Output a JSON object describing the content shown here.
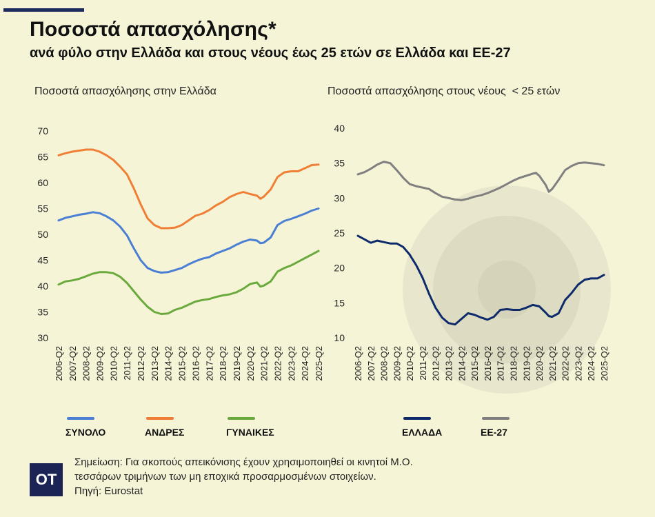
{
  "header": {
    "title": "Ποσοστά απασχόλησης*",
    "subtitle": "ανά φύλο στην Ελλάδα και στους νέους έως 25 ετών σε Ελλάδα και ΕΕ-27"
  },
  "chart_data": [
    {
      "type": "line",
      "title": "Ποσοστά απασχόλησης στην Ελλάδα",
      "ylim": [
        30,
        70
      ],
      "yticks": [
        70,
        65,
        60,
        55,
        50,
        45,
        40,
        35,
        30
      ],
      "xticks": [
        "2006-Q2",
        "2007-Q2",
        "2008-Q2",
        "2009-Q2",
        "2010-Q2",
        "2011-Q2",
        "2012-Q2",
        "2013-Q2",
        "2014-Q2",
        "2015-Q2",
        "2016-Q2",
        "2017-Q2",
        "2018-Q2",
        "2019-Q2",
        "2020-Q2",
        "2021-Q2",
        "2022-Q2",
        "2023-Q2",
        "2024-Q2",
        "2025-Q2"
      ],
      "grid": false,
      "legend_placement": "bottom",
      "x": [
        "2006-Q2",
        "2006-Q4",
        "2007-Q2",
        "2007-Q4",
        "2008-Q2",
        "2008-Q4",
        "2009-Q2",
        "2009-Q4",
        "2010-Q2",
        "2010-Q4",
        "2011-Q2",
        "2011-Q4",
        "2012-Q2",
        "2012-Q4",
        "2013-Q2",
        "2013-Q4",
        "2014-Q2",
        "2014-Q4",
        "2015-Q2",
        "2015-Q4",
        "2016-Q2",
        "2016-Q4",
        "2017-Q2",
        "2017-Q4",
        "2018-Q2",
        "2018-Q4",
        "2019-Q2",
        "2019-Q4",
        "2020-Q2",
        "2020-Q4",
        "2021-Q1",
        "2021-Q2",
        "2021-Q4",
        "2022-Q2",
        "2022-Q4",
        "2023-Q2",
        "2023-Q4",
        "2024-Q2",
        "2024-Q4",
        "2025-Q2"
      ],
      "series": [
        {
          "name": "ΣΥΝΟΛΟ",
          "color": "#4a7fd4",
          "values": [
            52.7,
            53.2,
            53.5,
            53.8,
            54.0,
            54.3,
            54.1,
            53.5,
            52.7,
            51.5,
            49.8,
            47.3,
            45.0,
            43.5,
            42.9,
            42.6,
            42.7,
            43.1,
            43.5,
            44.2,
            44.8,
            45.3,
            45.6,
            46.3,
            46.8,
            47.3,
            48.0,
            48.6,
            49.0,
            48.8,
            48.3,
            48.4,
            49.4,
            51.8,
            52.6,
            53.0,
            53.5,
            54.0,
            54.6,
            55.0
          ]
        },
        {
          "name": "ΑΝΔΡΕΣ",
          "color": "#f07f35",
          "values": [
            65.3,
            65.7,
            66.0,
            66.2,
            66.4,
            66.4,
            66.0,
            65.3,
            64.4,
            63.1,
            61.6,
            58.9,
            55.8,
            53.1,
            51.8,
            51.2,
            51.2,
            51.3,
            51.8,
            52.7,
            53.6,
            54.0,
            54.7,
            55.6,
            56.3,
            57.2,
            57.8,
            58.2,
            57.8,
            57.5,
            56.9,
            57.3,
            58.7,
            61.1,
            62.0,
            62.2,
            62.2,
            62.8,
            63.4,
            63.5
          ]
        },
        {
          "name": "ΓΥΝΑΙΚΕΣ",
          "color": "#6aaa3d",
          "values": [
            40.3,
            40.9,
            41.1,
            41.4,
            41.9,
            42.4,
            42.7,
            42.7,
            42.5,
            41.8,
            40.6,
            39.0,
            37.4,
            36.0,
            35.0,
            34.6,
            34.7,
            35.4,
            35.8,
            36.4,
            37.0,
            37.3,
            37.5,
            37.9,
            38.2,
            38.4,
            38.8,
            39.5,
            40.4,
            40.7,
            39.9,
            40.1,
            40.9,
            42.8,
            43.5,
            44.0,
            44.7,
            45.4,
            46.1,
            46.8
          ]
        }
      ]
    },
    {
      "type": "line",
      "title": "Ποσοστά απασχόλησης στους νέους  < 25 ετών",
      "ylim": [
        10,
        40
      ],
      "yticks": [
        40,
        35,
        30,
        25,
        20,
        15,
        10
      ],
      "xticks": [
        "2006-Q2",
        "2007-Q2",
        "2008-Q2",
        "2009-Q2",
        "2010-Q2",
        "2011-Q2",
        "2012-Q2",
        "2013-Q2",
        "2014-Q2",
        "2015-Q2",
        "2016-Q2",
        "2017-Q2",
        "2018-Q2",
        "2019-Q2",
        "2020-Q2",
        "2021-Q2",
        "2022-Q2",
        "2023-Q2",
        "2024-Q2",
        "2025-Q2"
      ],
      "grid": false,
      "legend_placement": "bottom",
      "x": [
        "2006-Q2",
        "2006-Q4",
        "2007-Q2",
        "2007-Q4",
        "2008-Q2",
        "2008-Q4",
        "2009-Q2",
        "2009-Q4",
        "2010-Q2",
        "2010-Q4",
        "2011-Q2",
        "2011-Q4",
        "2012-Q2",
        "2012-Q4",
        "2013-Q2",
        "2013-Q4",
        "2014-Q2",
        "2014-Q4",
        "2015-Q2",
        "2015-Q4",
        "2016-Q2",
        "2016-Q4",
        "2017-Q2",
        "2017-Q4",
        "2018-Q2",
        "2018-Q4",
        "2019-Q2",
        "2019-Q4",
        "2020-Q1",
        "2020-Q2",
        "2020-Q4",
        "2021-Q1",
        "2021-Q2",
        "2021-Q4",
        "2022-Q2",
        "2022-Q4",
        "2023-Q2",
        "2023-Q4",
        "2024-Q2",
        "2024-Q4",
        "2025-Q2"
      ],
      "series": [
        {
          "name": "ΕΛΛΑΔΑ",
          "color": "#0d2a6b",
          "values": [
            24.6,
            24.1,
            23.6,
            23.9,
            23.7,
            23.5,
            23.5,
            23.0,
            21.9,
            20.4,
            18.6,
            16.3,
            14.3,
            12.9,
            12.1,
            11.9,
            12.7,
            13.5,
            13.3,
            12.9,
            12.6,
            13.0,
            14.0,
            14.1,
            14.0,
            14.0,
            14.3,
            14.7,
            14.6,
            14.5,
            13.6,
            13.1,
            13.0,
            13.5,
            15.4,
            16.4,
            17.6,
            18.3,
            18.5,
            18.5,
            19.0
          ]
        },
        {
          "name": "ΕΕ-27",
          "color": "#7f7f7f",
          "values": [
            33.4,
            33.7,
            34.2,
            34.8,
            35.2,
            35.0,
            34.0,
            32.9,
            32.0,
            31.7,
            31.5,
            31.3,
            30.7,
            30.2,
            30.0,
            29.8,
            29.7,
            29.9,
            30.2,
            30.4,
            30.7,
            31.1,
            31.5,
            32.0,
            32.5,
            32.9,
            33.2,
            33.5,
            33.6,
            33.2,
            31.9,
            30.9,
            31.3,
            32.6,
            34.0,
            34.6,
            35.0,
            35.1,
            35.0,
            34.9,
            34.7
          ]
        }
      ]
    }
  ],
  "footer": {
    "logo_text": "ΟΤ",
    "note_line1": "Σημείωση: Για σκοπούς απεικόνισης έχουν χρησιμοποιηθεί οι κινητοί Μ.Ο.",
    "note_line2": "τεσσάρων τριμήνων των μη εποχικά προσαρμοσμένων στοιχείων.",
    "source": "Πηγή: Eurostat"
  },
  "colors": {
    "background": "#f6f4d7",
    "accent": "#1c2a5e"
  }
}
